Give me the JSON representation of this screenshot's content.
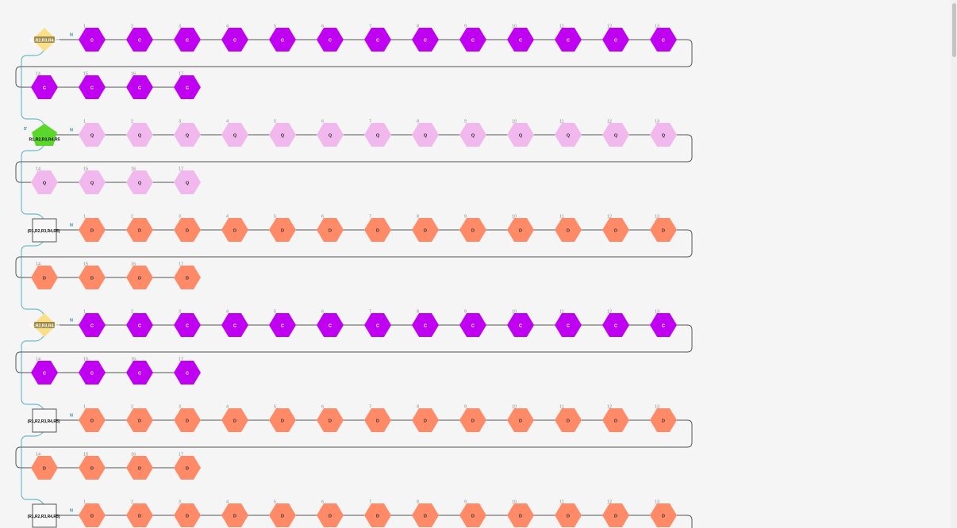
{
  "colors": {
    "background": "#f5f5f5",
    "backbone": "#555555",
    "link": "#6cbdc8",
    "terminal_label": "#2a8fa8",
    "number": "#888888",
    "C": "#c000f0",
    "Q": "#f0b8ec",
    "D": "#ff8a68",
    "diamond": "#f8df88",
    "pentagon": "#5ad62c",
    "square": "#f7f7f7"
  },
  "chains": [
    {
      "terminal": {
        "shape": "diamond",
        "label": "R1,R2,R3,R4,R5"
      },
      "n_label": "N",
      "five_label": "",
      "monomer": "C",
      "count": 17
    },
    {
      "terminal": {
        "shape": "pentagon",
        "label": "R1,R2,R3,R4,R5"
      },
      "n_label": "N",
      "five_label": "5'",
      "monomer": "Q",
      "count": 17
    },
    {
      "terminal": {
        "shape": "square",
        "label": "(R1,R2,R3,R4,R5)"
      },
      "n_label": "N",
      "five_label": "",
      "monomer": "D",
      "count": 17
    },
    {
      "terminal": {
        "shape": "diamond",
        "label": "R1,R2,R3,R4,R5"
      },
      "n_label": "N",
      "five_label": "",
      "monomer": "C",
      "count": 17
    },
    {
      "terminal": {
        "shape": "square",
        "label": "(R1,R2,R3,R4,R5)"
      },
      "n_label": "N",
      "five_label": "",
      "monomer": "D",
      "count": 17
    },
    {
      "terminal": {
        "shape": "square",
        "label": "(R1,R2,R3,R4,R5)"
      },
      "n_label": "N",
      "five_label": "",
      "monomer": "D",
      "count": 13
    }
  ]
}
